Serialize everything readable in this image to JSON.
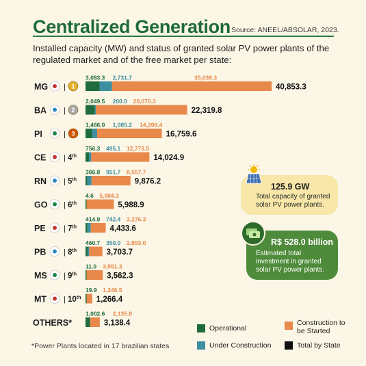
{
  "header": {
    "title": "Centralized Generation",
    "source": "Source: ANEEL/ABSOLAR, 2023.",
    "subtitle": "Installed capacity (MW) and status of granted solar PV power plants of the regulated market and of the free market per state:"
  },
  "colors": {
    "operational": "#1e6b3d",
    "under_construction": "#3d8fa0",
    "to_be_started": "#e8884a",
    "total": "#111111",
    "title_green": "#1f6b3a",
    "card_yellow": "#f8e7a8",
    "card_green": "#4e8b3a"
  },
  "chart_data": {
    "type": "bar",
    "orientation": "horizontal",
    "stacked": true,
    "title": "Centralized Generation",
    "subtitle": "Installed capacity (MW) and status of granted solar PV power plants of the regulated market and of the free market per state:",
    "categories": [
      "MG",
      "BA",
      "PI",
      "CE",
      "RN",
      "GO",
      "PE",
      "PB",
      "MS",
      "MT",
      "OTHERS*"
    ],
    "ranks": [
      "1",
      "2",
      "3",
      "4th",
      "5th",
      "6th",
      "7th",
      "8th",
      "9th",
      "10th",
      ""
    ],
    "series": [
      {
        "name": "Operational",
        "color": "#1e6b3d",
        "values": [
          3083.3,
          2049.5,
          1466.0,
          756.3,
          366.8,
          4.6,
          414.9,
          460.7,
          11.0,
          19.9,
          1002.6
        ]
      },
      {
        "name": "Under Construction",
        "color": "#3d8fa0",
        "values": [
          2731.7,
          200.0,
          1085.2,
          495.1,
          951.7,
          null,
          742.4,
          350.0,
          null,
          null,
          null
        ]
      },
      {
        "name": "Construction to be Started",
        "color": "#e8884a",
        "values": [
          35038.3,
          20070.3,
          14208.4,
          12773.5,
          8557.7,
          5984.3,
          3276.3,
          2893.0,
          3551.3,
          1246.5,
          2135.8
        ]
      }
    ],
    "value_labels": {
      "operational": [
        "3,083.3",
        "2,049.5",
        "1,466.0",
        "756.3",
        "366.8",
        "4.6",
        "414.9",
        "460.7",
        "11.0",
        "19.9",
        "1,002.6"
      ],
      "under_construction": [
        "2,731.7",
        "200.0",
        "1,085.2",
        "495.1",
        "951.7",
        "",
        "742.4",
        "350.0",
        "",
        "",
        ""
      ],
      "to_be_started": [
        "35,038.3",
        "20,070.3",
        "14,208.4",
        "12,773.5",
        "8,557.7",
        "5,984.3",
        "3,276.3",
        "2,893.0",
        "3,551.3",
        "1,246.5",
        "2,135.8"
      ]
    },
    "totals": [
      40853.3,
      22319.8,
      16759.6,
      14024.9,
      9876.2,
      5988.9,
      4433.6,
      3703.7,
      3562.3,
      1266.4,
      3138.4
    ],
    "total_labels": [
      "40,853.3",
      "22,319.8",
      "16,759.6",
      "14,024.9",
      "9,876.2",
      "5,988.9",
      "4,433.6",
      "3,703.7",
      "3,562.3",
      "1,266.4",
      "3,138.4"
    ],
    "xlabel": "",
    "ylabel": "",
    "grid": false,
    "legend_position": "bottom-right"
  },
  "highlights": {
    "capacity_value": "125.9 GW",
    "capacity_desc": "Total capacity of granted solar PV power plants.",
    "investment_value": "R$ 528.0 billion",
    "investment_desc": "Estimated total investment in granted solar PV power plants."
  },
  "legend": {
    "operational": "Operational",
    "under_construction": "Under Construction",
    "to_be_started": "Construction to be Started",
    "total": "Total by State"
  },
  "footnote": "*Power Plants located in 17 brazilian states"
}
